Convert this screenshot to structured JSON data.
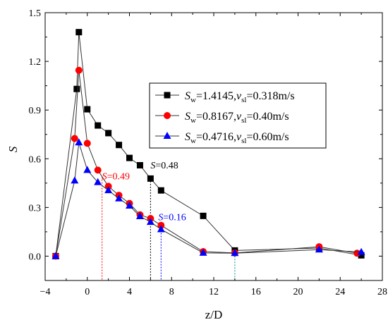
{
  "chart_data": {
    "type": "line",
    "xlabel": "z/D",
    "ylabel": "S",
    "xlim": [
      -4,
      28
    ],
    "ylim": [
      -0.15,
      1.5
    ],
    "xticks": [
      -4,
      0,
      4,
      8,
      12,
      16,
      20,
      24,
      28
    ],
    "xtick_labels": [
      "−4",
      "0",
      "4",
      "8",
      "12",
      "16",
      "20",
      "24",
      "28"
    ],
    "yticks": [
      0.0,
      0.3,
      0.6,
      0.9,
      1.2,
      1.5
    ],
    "ytick_labels": [
      "0.0",
      "0.3",
      "0.6",
      "0.9",
      "1.2",
      "1.5"
    ],
    "grid": false,
    "legend_position": "center-right",
    "series": [
      {
        "name": "Sw=1.4145,vsl=0.318m/s",
        "legend": {
          "main": "S",
          "sub1": "w",
          "mid": "=1.4145,",
          "v": "v",
          "sub2": "sl",
          "tail": "=0.318m/s"
        },
        "marker": "square",
        "color": "#000000",
        "x": [
          -3,
          -1,
          -0.8,
          0,
          1,
          2,
          3,
          4,
          5,
          6,
          7,
          11,
          14,
          22,
          26
        ],
        "y": [
          0.0,
          1.03,
          1.38,
          0.905,
          0.805,
          0.758,
          0.685,
          0.605,
          0.56,
          0.478,
          0.405,
          0.248,
          0.035,
          0.05,
          0.005
        ]
      },
      {
        "name": "Sw=0.8167,vsl=0.40m/s",
        "legend": {
          "main": "S",
          "sub1": "w",
          "mid": "=0.8167,",
          "v": "v",
          "sub2": "sl",
          "tail": "=0.40m/s"
        },
        "marker": "circle",
        "color": "#ff0000",
        "x": [
          -3,
          -1.2,
          -0.8,
          0,
          1,
          2,
          3,
          4,
          5,
          6,
          7,
          11,
          14,
          22,
          25.6
        ],
        "y": [
          0.0,
          0.725,
          1.145,
          0.695,
          0.53,
          0.43,
          0.375,
          0.325,
          0.255,
          0.232,
          0.19,
          0.028,
          0.02,
          0.058,
          0.018
        ]
      },
      {
        "name": "Sw=0.4716,vsl=0.60m/s",
        "legend": {
          "main": "S",
          "sub1": "w",
          "mid": "=0.4716,",
          "v": "v",
          "sub2": "sl",
          "tail": "=0.60m/s"
        },
        "marker": "triangle",
        "color": "#0000ff",
        "x": [
          -3,
          -1.2,
          -0.8,
          0,
          1,
          2,
          3,
          4,
          5,
          6,
          7,
          11,
          14,
          22,
          26
        ],
        "y": [
          0.0,
          0.465,
          0.7,
          0.53,
          0.455,
          0.405,
          0.355,
          0.31,
          0.245,
          0.21,
          0.165,
          0.02,
          0.018,
          0.04,
          0.025
        ]
      }
    ],
    "annotations": [
      {
        "key": "red",
        "prefix": "S",
        "value": "=0.49",
        "x": 1.4,
        "y": 0.49,
        "color": "#ff0000",
        "line_to": -0.15
      },
      {
        "key": "black",
        "prefix": "S",
        "value": "=0.48",
        "x": 6.0,
        "y": 0.48,
        "color": "#000000",
        "line_to": -0.15
      },
      {
        "key": "blue",
        "prefix": "S",
        "value": "=0.16",
        "x": 7.0,
        "y": 0.16,
        "color": "#0000ff",
        "line_to": -0.15
      },
      {
        "key": "teal",
        "prefix": "",
        "value": "",
        "x": 14.0,
        "y": 0.035,
        "color": "#008b8b",
        "line_to": -0.15
      }
    ]
  }
}
